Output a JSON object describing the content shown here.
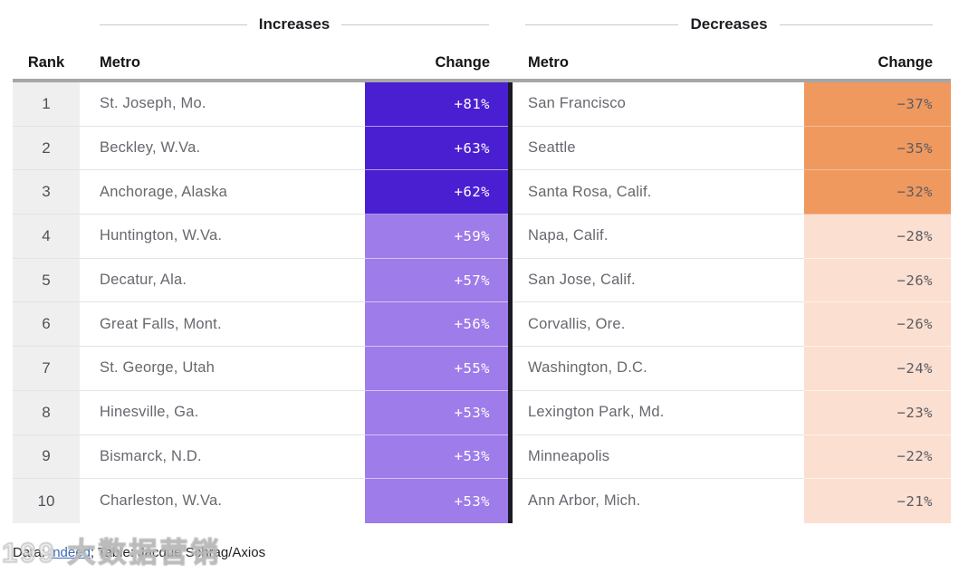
{
  "section_titles": {
    "increases": "Increases",
    "decreases": "Decreases"
  },
  "column_headers": {
    "rank": "Rank",
    "metro_left": "Metro",
    "change_left": "Change",
    "metro_right": "Metro",
    "change_right": "Change"
  },
  "rows": [
    {
      "rank": "1",
      "inc_metro": "St. Joseph, Mo.",
      "inc_change": "+81%",
      "dec_metro": "San Francisco",
      "dec_change": "−37%"
    },
    {
      "rank": "2",
      "inc_metro": "Beckley, W.Va.",
      "inc_change": "+63%",
      "dec_metro": "Seattle",
      "dec_change": "−35%"
    },
    {
      "rank": "3",
      "inc_metro": "Anchorage, Alaska",
      "inc_change": "+62%",
      "dec_metro": "Santa Rosa, Calif.",
      "dec_change": "−32%"
    },
    {
      "rank": "4",
      "inc_metro": "Huntington, W.Va.",
      "inc_change": "+59%",
      "dec_metro": "Napa, Calif.",
      "dec_change": "−28%"
    },
    {
      "rank": "5",
      "inc_metro": "Decatur, Ala.",
      "inc_change": "+57%",
      "dec_metro": "San Jose, Calif.",
      "dec_change": "−26%"
    },
    {
      "rank": "6",
      "inc_metro": "Great Falls, Mont.",
      "inc_change": "+56%",
      "dec_metro": "Corvallis, Ore.",
      "dec_change": "−26%"
    },
    {
      "rank": "7",
      "inc_metro": "St. George, Utah",
      "inc_change": "+55%",
      "dec_metro": "Washington, D.C.",
      "dec_change": "−24%"
    },
    {
      "rank": "8",
      "inc_metro": "Hinesville, Ga.",
      "inc_change": "+53%",
      "dec_metro": "Lexington Park, Md.",
      "dec_change": "−23%"
    },
    {
      "rank": "9",
      "inc_metro": "Bismarck, N.D.",
      "inc_change": "+53%",
      "dec_metro": "Minneapolis",
      "dec_change": "−22%"
    },
    {
      "rank": "10",
      "inc_metro": "Charleston, W.Va.",
      "inc_change": "+53%",
      "dec_metro": "Ann Arbor, Mich.",
      "dec_change": "−21%"
    }
  ],
  "caption": {
    "prefix": "Data: ",
    "source_link": "Indeed",
    "suffix": "; Table: Jacque Schrag/Axios"
  },
  "watermark": "199 大数据营销",
  "colors": {
    "increase_strong": "#4a1fd2",
    "increase_light": "#9e7ce9",
    "decrease_strong": "#ef995f",
    "decrease_light": "#fbdfd0",
    "rank_column_bg": "#f0eff0",
    "divider_dark": "#1b1b26",
    "header_bar": "#a6a6a6",
    "link_blue": "#3b6ab5"
  },
  "chart_data": {
    "type": "table",
    "title": "",
    "legend_position": "none",
    "sections": [
      {
        "label": "Increases",
        "columns": [
          "Rank",
          "Metro",
          "Change"
        ],
        "rows": [
          [
            1,
            "St. Joseph, Mo.",
            "+81%"
          ],
          [
            2,
            "Beckley, W.Va.",
            "+63%"
          ],
          [
            3,
            "Anchorage, Alaska",
            "+62%"
          ],
          [
            4,
            "Huntington, W.Va.",
            "+59%"
          ],
          [
            5,
            "Decatur, Ala.",
            "+57%"
          ],
          [
            6,
            "Great Falls, Mont.",
            "+56%"
          ],
          [
            7,
            "St. George, Utah",
            "+55%"
          ],
          [
            8,
            "Hinesville, Ga.",
            "+53%"
          ],
          [
            9,
            "Bismarck, N.D.",
            "+53%"
          ],
          [
            10,
            "Charleston, W.Va.",
            "+53%"
          ]
        ],
        "values_pct": [
          81,
          63,
          62,
          59,
          57,
          56,
          55,
          53,
          53,
          53
        ]
      },
      {
        "label": "Decreases",
        "columns": [
          "Metro",
          "Change"
        ],
        "rows": [
          [
            "San Francisco",
            "−37%"
          ],
          [
            "Seattle",
            "−35%"
          ],
          [
            "Santa Rosa, Calif.",
            "−32%"
          ],
          [
            "Napa, Calif.",
            "−28%"
          ],
          [
            "San Jose, Calif.",
            "−26%"
          ],
          [
            "Corvallis, Ore.",
            "−26%"
          ],
          [
            "Washington, D.C.",
            "−24%"
          ],
          [
            "Lexington Park, Md.",
            "−23%"
          ],
          [
            "Minneapolis",
            "−22%"
          ],
          [
            "Ann Arbor, Mich.",
            "−21%"
          ]
        ],
        "values_pct": [
          -37,
          -35,
          -32,
          -28,
          -26,
          -26,
          -24,
          -23,
          -22,
          -21
        ]
      }
    ]
  }
}
